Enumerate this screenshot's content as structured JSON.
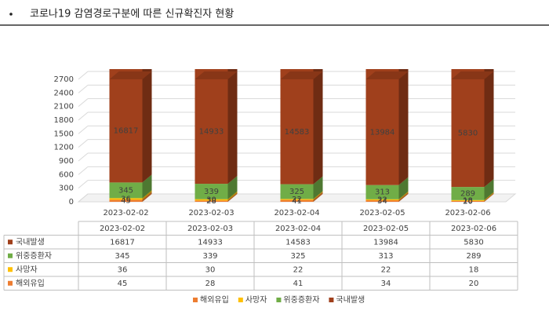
{
  "chart_data": {
    "type": "bar3d_stacked",
    "title": "코로나19 감염경로구분에 따른 신규확진자 현황",
    "categories": [
      "2023-02-02",
      "2023-02-03",
      "2023-02-04",
      "2023-02-05",
      "2023-02-06"
    ],
    "series": [
      {
        "name": "해외유입",
        "color": "#ed7d31",
        "values": [
          45,
          28,
          41,
          34,
          20
        ]
      },
      {
        "name": "사망자",
        "color": "#ffc000",
        "values": [
          36,
          30,
          22,
          22,
          18
        ]
      },
      {
        "name": "위중증환자",
        "color": "#70ad47",
        "values": [
          345,
          339,
          325,
          313,
          289
        ]
      },
      {
        "name": "국내발생",
        "color": "#a0401c",
        "values": [
          16817,
          14933,
          14583,
          13984,
          5830
        ]
      }
    ],
    "ylim": [
      0,
      2700
    ],
    "yticks": [
      0,
      300,
      600,
      900,
      1200,
      1500,
      1800,
      2100,
      2400,
      2700
    ],
    "grid": true,
    "legend": "bottom"
  }
}
